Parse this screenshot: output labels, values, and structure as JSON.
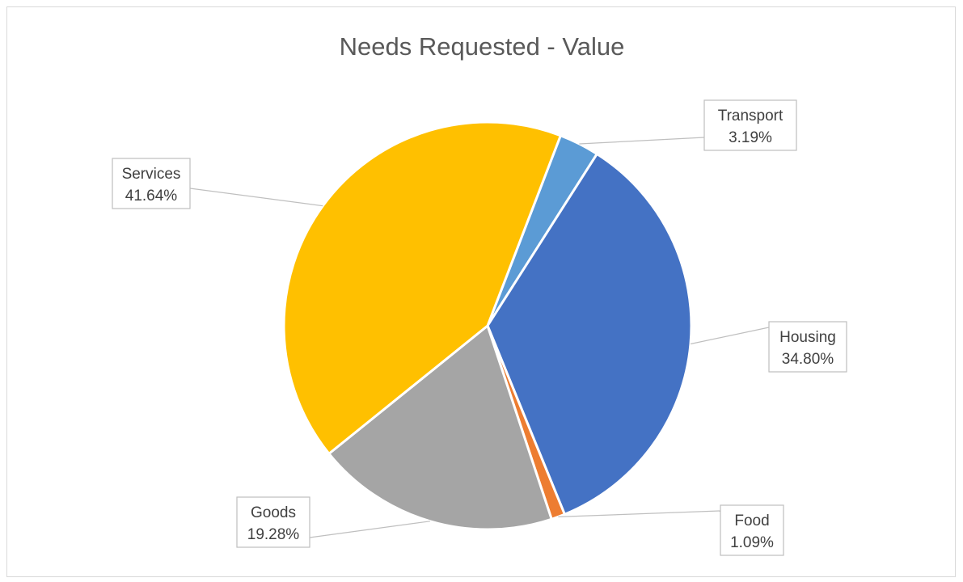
{
  "chart_data": {
    "type": "pie",
    "title": "Needs Requested - Value",
    "slices": [
      {
        "label": "Transport",
        "value": 3.19,
        "display": "3.19%",
        "color": "#5b9bd5"
      },
      {
        "label": "Housing",
        "value": 34.8,
        "display": "34.80%",
        "color": "#4472c4"
      },
      {
        "label": "Food",
        "value": 1.09,
        "display": "1.09%",
        "color": "#ed7d31"
      },
      {
        "label": "Goods",
        "value": 19.28,
        "display": "19.28%",
        "color": "#a5a5a5"
      },
      {
        "label": "Services",
        "value": 41.64,
        "display": "41.64%",
        "color": "#ffc000"
      }
    ],
    "start_angle_deg": 21,
    "direction": "clockwise",
    "legend": "none",
    "data_labels": "callouts with leader lines"
  }
}
